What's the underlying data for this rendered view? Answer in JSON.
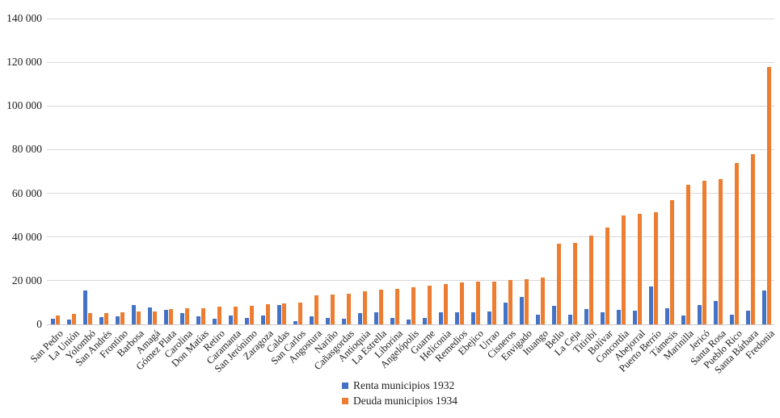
{
  "figure": {
    "background": "#ffffff"
  },
  "chart_data": {
    "type": "bar",
    "title": "",
    "xlabel": "",
    "ylabel": "",
    "ylim": [
      0,
      140000
    ],
    "grid": true,
    "gridline_color": "#d9d9d9",
    "legend_position": "bottom-center",
    "ytick_values": [
      0,
      20000,
      40000,
      60000,
      80000,
      100000,
      120000,
      140000
    ],
    "ytick_labels": [
      "0",
      "20 000",
      "40 000",
      "60 000",
      "80 000",
      "100 000",
      "120 000",
      "140 000"
    ],
    "categories": [
      "San Pedro",
      "La Unión",
      "Yolombó",
      "San Andrés",
      "Frontino",
      "Barbosa",
      "Amagá",
      "Gómez Plata",
      "Carolina",
      "Don Matías",
      "Retiro",
      "Caramanta",
      "San Jerónimo",
      "Zaragoza",
      "Caldas",
      "San Carlos",
      "Angostura",
      "Nariño",
      "Cañasgordas",
      "Antioquia",
      "La Estrella",
      "Liborina",
      "Angelópolis",
      "Guarne",
      "Heliconia",
      "Remedios",
      "Ebejico",
      "Urrao",
      "Cisneros",
      "Envigado",
      "Ituango",
      "Bello",
      "La Ceja",
      "Titiribí",
      "Bolívar",
      "Concordia",
      "Abejorral",
      "Puerto Berrío",
      "Támesis",
      "Marinilla",
      "Jericó",
      "Santa Rosa",
      "Pueblo Rico",
      "Santa Bárbara",
      "Fredonia"
    ],
    "series": [
      {
        "name": "Renta municipios 1932",
        "color": "#4472C4",
        "values": [
          2500,
          2200,
          15600,
          3400,
          3600,
          8700,
          7800,
          6500,
          5300,
          3800,
          2500,
          4100,
          2800,
          4100,
          9000,
          1300,
          3800,
          2800,
          2500,
          5300,
          5600,
          2800,
          2100,
          2800,
          5400,
          5600,
          5400,
          6000,
          10000,
          12500,
          4600,
          8500,
          4400,
          6900,
          5600,
          6500,
          6300,
          17200,
          7300,
          4100,
          9000,
          10600,
          4600,
          6300,
          15400
        ]
      },
      {
        "name": "Deuda municipios 1934",
        "color": "#ED7D31",
        "values": [
          4200,
          4800,
          5100,
          5300,
          5600,
          5800,
          5900,
          6900,
          7400,
          7500,
          8300,
          8300,
          8500,
          9100,
          9600,
          10100,
          13400,
          13600,
          14000,
          15100,
          16000,
          16300,
          17100,
          17800,
          18500,
          19100,
          19400,
          19600,
          20400,
          20800,
          21600,
          37000,
          37400,
          40600,
          44400,
          49700,
          50600,
          51500,
          57000,
          64000,
          65800,
          66500,
          74000,
          78000,
          118000
        ]
      }
    ]
  }
}
